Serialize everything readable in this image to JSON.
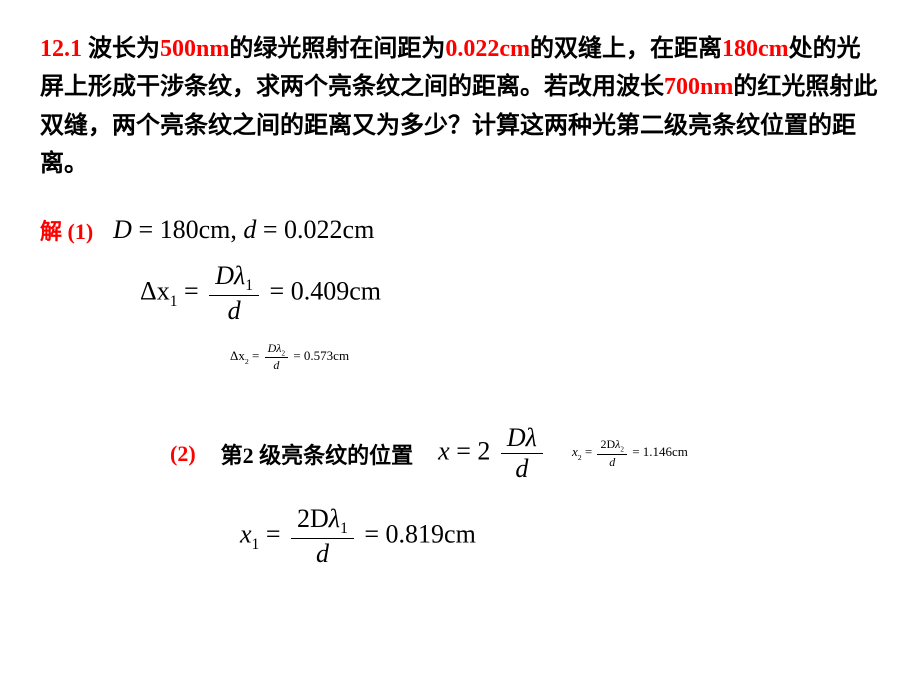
{
  "problem": {
    "num": "12.1",
    "t1": "  波长为",
    "v1": "500nm",
    "t2": "的绿光照射在间距为",
    "v2": "0.022cm",
    "t3": "的双缝上，在距离",
    "v3": "180cm",
    "t4": "处的光屏上形成干涉条纹，求两个亮条纹之间的距离。若改用波长",
    "v4": "700nm",
    "t5": "的红光照射此双缝，两个亮条纹之间的距离又为多少？计算这两种光第二级亮条纹位置的距离。"
  },
  "solution": {
    "label": "解  (1)",
    "given_D": "D",
    "given_eq1": " = 180cm, ",
    "given_d": "d",
    "given_eq2": " = 0.022cm",
    "dx1_lhs": "Δx",
    "dx1_sub": "1",
    "dx1_eq": " = ",
    "dx1_num_D": "D",
    "dx1_num_lam": "λ",
    "dx1_num_sub": "1",
    "dx1_den": "d",
    "dx1_result": " = 0.409cm",
    "dx2_lhs": "Δx",
    "dx2_sub": "2",
    "dx2_eq": " = ",
    "dx2_num_D": "D",
    "dx2_num_lam": "λ",
    "dx2_num_sub": "2",
    "dx2_den": "d",
    "dx2_result": " = 0.573cm"
  },
  "part2": {
    "label": "(2)",
    "text": "第2 级亮条纹的位置",
    "x_lhs": "x",
    "x_eq": " = 2",
    "x_num_D": "D",
    "x_num_lam": "λ",
    "x_den": "d",
    "x2_lhs": "x",
    "x2_sub": "2",
    "x2_eq": " = ",
    "x2_num_2D": "2D",
    "x2_num_lam": "λ",
    "x2_num_sub": "2",
    "x2_den": "d",
    "x2_result": " = 1.146cm",
    "x1_lhs": "x",
    "x1_sub": "1",
    "x1_eq": " = ",
    "x1_num_2D": "2D",
    "x1_num_lam": "λ",
    "x1_num_sub": "1",
    "x1_den": "d",
    "x1_result": " = 0.819cm"
  }
}
